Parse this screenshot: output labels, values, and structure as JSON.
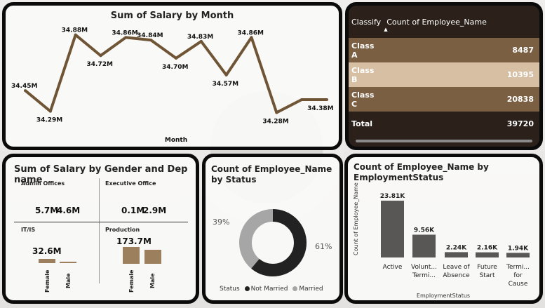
{
  "line_chart": {
    "title": "Sum of Salary by Month",
    "xlabel": "Month",
    "line_color": "#6f5536"
  },
  "table": {
    "col1_header": "Classify",
    "col2_header": "Count of Employee_Name",
    "sort_indicator": "▲",
    "rows": [
      {
        "label": "Class A",
        "value": "8487"
      },
      {
        "label": "Class B",
        "value": "10395"
      },
      {
        "label": "Class C",
        "value": "20838"
      }
    ],
    "total": {
      "label": "Total",
      "value": "39720"
    }
  },
  "gender_chart": {
    "title": "Sum of Salary by Gender and Dep name",
    "cells": [
      {
        "name": "Admin Offices",
        "values": [
          "5.7M",
          "4.6M"
        ]
      },
      {
        "name": "Executive Office",
        "values": [
          "0.1M",
          "2.9M"
        ]
      },
      {
        "name": "IT/IS",
        "values": [
          "32.6M",
          ""
        ]
      },
      {
        "name": "Production",
        "values": [
          "173.7M",
          ""
        ]
      }
    ],
    "genders": [
      "Female",
      "Male"
    ],
    "bar_color": "#9c7f5c"
  },
  "donut_chart": {
    "title": "Count of Employee_Name by Status",
    "legend_title": "Status",
    "segments": [
      {
        "name": "Not Married",
        "pct_label": "61%",
        "color": "#222222"
      },
      {
        "name": "Married",
        "pct_label": "39%",
        "color": "#a6a6a6"
      }
    ]
  },
  "status_chart": {
    "title": "Count of Employee_Name by EmploymentStatus",
    "ylabel": "Count of Employee_Name",
    "xlabel": "EmploymentStatus",
    "bar_color": "#595756"
  },
  "chart_data": [
    {
      "type": "line",
      "title": "Sum of Salary by Month",
      "xlabel": "Month",
      "ylabel": "",
      "x": [
        1,
        2,
        3,
        4,
        5,
        6,
        7,
        8,
        9,
        10,
        11,
        12,
        13
      ],
      "values": [
        34.45,
        34.29,
        34.88,
        34.72,
        34.86,
        34.84,
        34.7,
        34.83,
        34.57,
        34.86,
        34.28,
        34.38,
        34.38
      ],
      "data_labels": [
        "34.45M",
        "34.29M",
        "34.88M",
        "34.72M",
        "34.86M",
        "34.84M",
        "34.70M",
        "34.83M",
        "34.57M",
        "34.86M",
        "34.28M",
        "34.38M",
        ""
      ],
      "unit": "M"
    },
    {
      "type": "table",
      "columns": [
        "Classify",
        "Count of Employee_Name"
      ],
      "rows": [
        [
          "Class A",
          8487
        ],
        [
          "Class B",
          10395
        ],
        [
          "Class C",
          20838
        ],
        [
          "Total",
          39720
        ]
      ]
    },
    {
      "type": "bar",
      "title": "Sum of Salary by Gender and Dep name",
      "categories": [
        "Female",
        "Male"
      ],
      "panels": [
        {
          "name": "Admin Offices",
          "values": [
            5.7,
            4.6
          ]
        },
        {
          "name": "Executive Office",
          "values": [
            0.1,
            2.9
          ]
        },
        {
          "name": "IT/IS",
          "values": [
            32.6,
            null
          ]
        },
        {
          "name": "Production",
          "values": [
            173.7,
            null
          ]
        }
      ],
      "unit": "M"
    },
    {
      "type": "pie",
      "title": "Count of Employee_Name by Status",
      "categories": [
        "Not Married",
        "Married"
      ],
      "values": [
        61,
        39
      ],
      "unit": "%"
    },
    {
      "type": "bar",
      "title": "Count of Employee_Name by EmploymentStatus",
      "xlabel": "EmploymentStatus",
      "ylabel": "Count of Employee_Name",
      "categories": [
        "Active",
        "Volunt... Termi...",
        "Leave of Absence",
        "Future Start",
        "Termi... for Cause"
      ],
      "values": [
        23.81,
        9.56,
        2.24,
        2.16,
        1.94
      ],
      "data_labels": [
        "23.81K",
        "9.56K",
        "2.24K",
        "2.16K",
        "1.94K"
      ],
      "unit": "K"
    }
  ]
}
